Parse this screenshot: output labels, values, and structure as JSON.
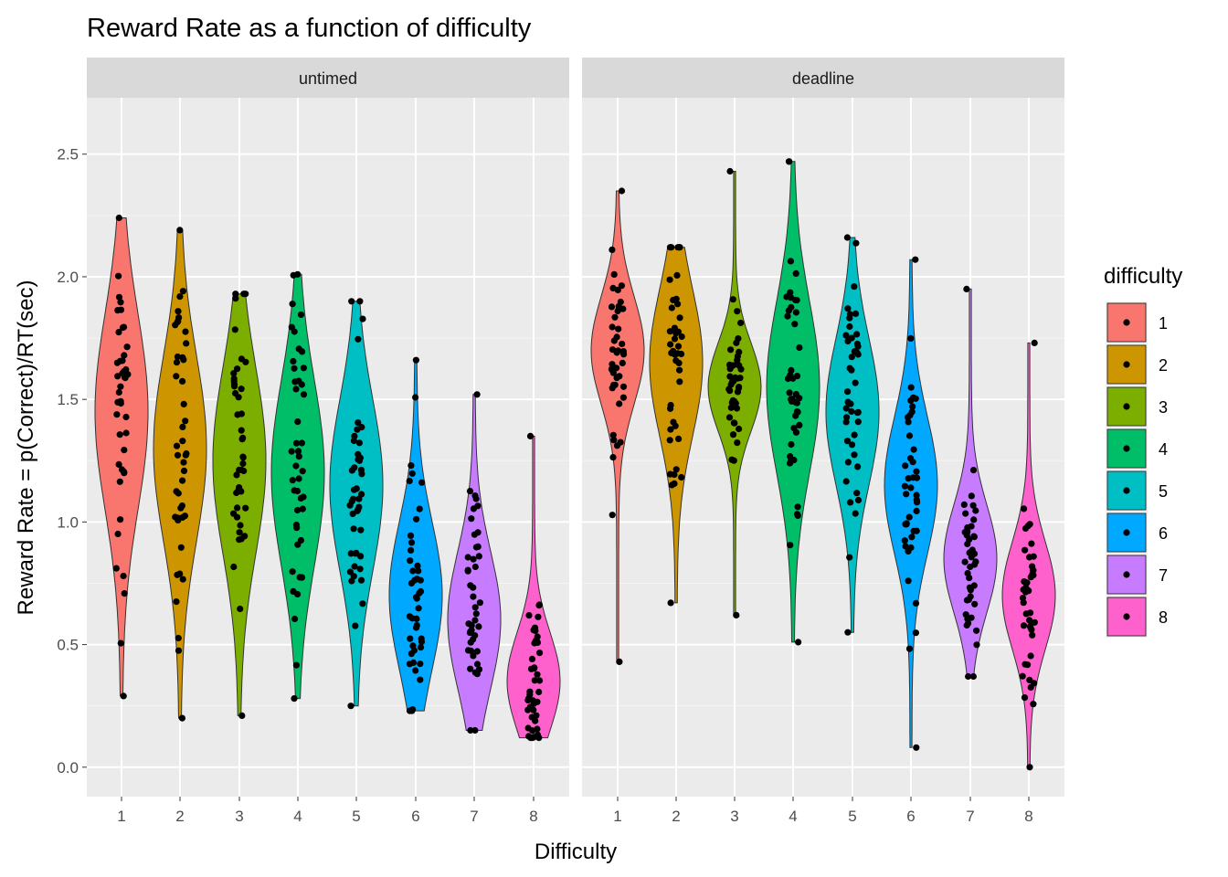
{
  "chart_data": {
    "type": "violin",
    "title": "Reward Rate as a function of difficulty",
    "xlabel": "Difficulty",
    "ylabel": "Reward Rate = p(Correct)/RT(sec)",
    "categories": [
      "1",
      "2",
      "3",
      "4",
      "5",
      "6",
      "7",
      "8"
    ],
    "y_ticks": [
      0.0,
      0.5,
      1.0,
      1.5,
      2.0,
      2.5
    ],
    "y_tick_labels": [
      "0.0",
      "0.5",
      "1.0",
      "1.5",
      "2.0",
      "2.5"
    ],
    "ylim": [
      -0.12,
      2.73
    ],
    "grid": true,
    "legend": {
      "title": "difficulty",
      "position": "right",
      "entries": [
        "1",
        "2",
        "3",
        "4",
        "5",
        "6",
        "7",
        "8"
      ]
    },
    "colors": [
      "#F8766D",
      "#CD9600",
      "#7CAE00",
      "#00BE67",
      "#00BFC4",
      "#00A9FF",
      "#C77CFF",
      "#FF61CC"
    ],
    "panels": [
      {
        "label": "untimed",
        "series": [
          {
            "category": "1",
            "min": 0.29,
            "max": 2.24,
            "median": 1.45,
            "spread": 0.4
          },
          {
            "category": "2",
            "min": 0.2,
            "max": 2.19,
            "median": 1.3,
            "spread": 0.38
          },
          {
            "category": "3",
            "min": 0.21,
            "max": 1.93,
            "median": 1.25,
            "spread": 0.38
          },
          {
            "category": "4",
            "min": 0.28,
            "max": 2.01,
            "median": 1.2,
            "spread": 0.38
          },
          {
            "category": "5",
            "min": 0.25,
            "max": 1.9,
            "median": 1.15,
            "spread": 0.35
          },
          {
            "category": "6",
            "min": 0.23,
            "max": 1.66,
            "median": 0.7,
            "spread": 0.3
          },
          {
            "category": "7",
            "min": 0.15,
            "max": 1.52,
            "median": 0.6,
            "spread": 0.28
          },
          {
            "category": "8",
            "min": 0.12,
            "max": 1.35,
            "median": 0.35,
            "spread": 0.2
          }
        ]
      },
      {
        "label": "deadline",
        "series": [
          {
            "category": "1",
            "min": 0.43,
            "max": 2.35,
            "median": 1.7,
            "spread": 0.22
          },
          {
            "category": "2",
            "min": 0.67,
            "max": 2.12,
            "median": 1.65,
            "spread": 0.3
          },
          {
            "category": "3",
            "min": 0.62,
            "max": 2.43,
            "median": 1.55,
            "spread": 0.18
          },
          {
            "category": "4",
            "min": 0.51,
            "max": 2.47,
            "median": 1.55,
            "spread": 0.35
          },
          {
            "category": "5",
            "min": 0.55,
            "max": 2.16,
            "median": 1.45,
            "spread": 0.3
          },
          {
            "category": "6",
            "min": 0.08,
            "max": 2.07,
            "median": 1.15,
            "spread": 0.28
          },
          {
            "category": "7",
            "min": 0.37,
            "max": 1.95,
            "median": 0.85,
            "spread": 0.22
          },
          {
            "category": "8",
            "min": 0.0,
            "max": 1.73,
            "median": 0.7,
            "spread": 0.22
          }
        ]
      }
    ]
  }
}
